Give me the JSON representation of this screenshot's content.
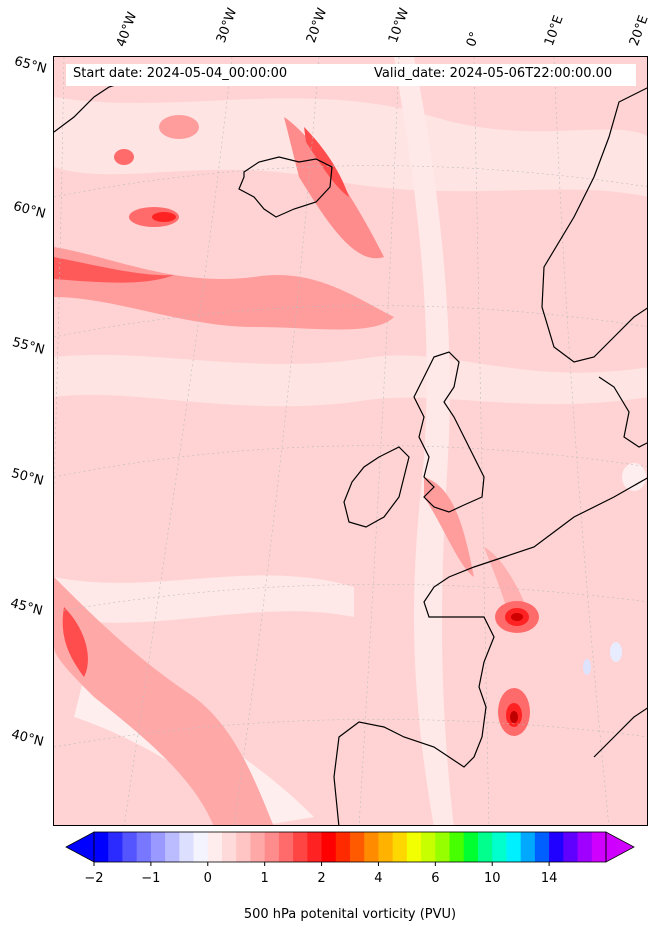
{
  "header": {
    "start_date": "Start date: 2024-05-04_00:00:00",
    "valid_date": "Valid_date: 2024-05-06T22:00:00.00"
  },
  "longitude_labels": [
    "40°W",
    "30°W",
    "20°W",
    "10°W",
    "0°",
    "10°E",
    "20°E"
  ],
  "latitude_labels": [
    "65°N",
    "60°N",
    "55°N",
    "50°N",
    "45°N",
    "40°N"
  ],
  "colorbar": {
    "title": "500 hPa potenital vorticity (PVU)",
    "tick_labels": [
      "−2",
      "−1",
      "0",
      "1",
      "2",
      "4",
      "6",
      "10",
      "14"
    ],
    "colors": [
      "#0000ff",
      "#2b2bff",
      "#5555ff",
      "#7777ff",
      "#9999ff",
      "#bbbbff",
      "#dddffe",
      "#f4f4ff",
      "#ffeded",
      "#ffdada",
      "#ffc4c4",
      "#ffa8a8",
      "#ff8c8c",
      "#ff6b6b",
      "#ff4444",
      "#ff2222",
      "#ff0000",
      "#ff2a00",
      "#ff5a00",
      "#ff8c00",
      "#ffb300",
      "#ffd700",
      "#f2ff00",
      "#c8ff00",
      "#96ff00",
      "#46ff00",
      "#00ff30",
      "#00ff8c",
      "#00ffcc",
      "#00f0ff",
      "#00a8ff",
      "#0060ff",
      "#2000ff",
      "#6000ff",
      "#a000ff",
      "#d000ff"
    ]
  },
  "map": {
    "variable": "500 hPa potential vorticity",
    "background_color": "#ffd3d3",
    "coastline_color": "#000000",
    "features": [
      "North Atlantic",
      "Iceland",
      "Greenland coast",
      "British Isles",
      "Scandinavia",
      "France",
      "Iberia"
    ]
  }
}
